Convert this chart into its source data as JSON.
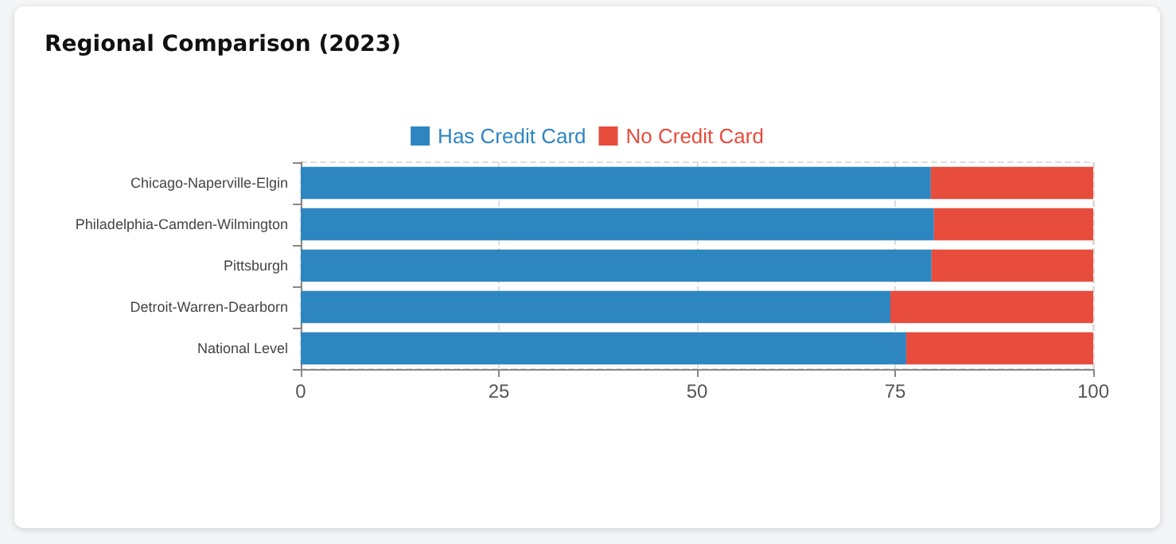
{
  "chart_data": {
    "type": "bar",
    "title": "Regional Comparison (2023)",
    "orientation": "horizontal",
    "stacked": true,
    "categories": [
      "Chicago-Naperville-Elgin",
      "Philadelphia-Camden-Wilmington",
      "Pittsburgh",
      "Detroit-Warren-Dearborn",
      "National Level"
    ],
    "series": [
      {
        "name": "Has Credit Card",
        "color": "#2e86c1",
        "values": [
          79.5,
          79.9,
          79.6,
          74.4,
          76.4
        ]
      },
      {
        "name": "No Credit Card",
        "color": "#e74c3c",
        "values": [
          20.5,
          20.1,
          20.4,
          25.6,
          23.6
        ]
      }
    ],
    "xlim": [
      0,
      100
    ],
    "xticks": [
      0,
      25,
      50,
      75,
      100
    ],
    "grid": "x",
    "legend": "top"
  }
}
